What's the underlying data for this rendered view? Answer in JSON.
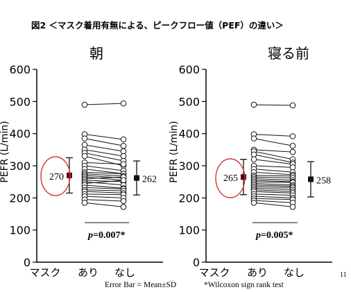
{
  "figure": {
    "title": "図2 ＜マスク着用有無による、ピークフロー値（PEF）の違い＞",
    "page_number": "11",
    "footnote_left": "Error Bar = Mean±SD",
    "footnote_right": "*Wilcoxon sign rank test"
  },
  "chart_data": [
    {
      "type": "paired-scatter",
      "title": "朝",
      "ylabel": "PEFR (L/min)",
      "xlabel": "マスク",
      "categories": [
        "あり",
        "なし"
      ],
      "ylim": [
        0,
        600
      ],
      "yticks": [
        0,
        100,
        200,
        300,
        400,
        500,
        600
      ],
      "grid": false,
      "pairs": [
        [
          490,
          494
        ],
        [
          398,
          382
        ],
        [
          385,
          362
        ],
        [
          365,
          345
        ],
        [
          350,
          330
        ],
        [
          340,
          315
        ],
        [
          330,
          300
        ],
        [
          310,
          305
        ],
        [
          300,
          285
        ],
        [
          290,
          275
        ],
        [
          280,
          275
        ],
        [
          275,
          268
        ],
        [
          270,
          262
        ],
        [
          265,
          255
        ],
        [
          260,
          265
        ],
        [
          255,
          250
        ],
        [
          250,
          240
        ],
        [
          245,
          255
        ],
        [
          240,
          230
        ],
        [
          232,
          228
        ],
        [
          225,
          222
        ],
        [
          220,
          215
        ],
        [
          212,
          210
        ],
        [
          205,
          200
        ],
        [
          195,
          190
        ],
        [
          185,
          172
        ]
      ],
      "mean_sd": [
        {
          "label": "270",
          "mean": 270,
          "sd": 55
        },
        {
          "label": "262",
          "mean": 262,
          "sd": 53
        }
      ],
      "p_prefix": "p",
      "p_value": "=0.007*",
      "highlight": "circled-mean-left"
    },
    {
      "type": "paired-scatter",
      "title": "寝る前",
      "ylabel": "PEFR (L/min)",
      "xlabel": "マスク",
      "categories": [
        "あり",
        "なし"
      ],
      "ylim": [
        0,
        600
      ],
      "yticks": [
        0,
        100,
        200,
        300,
        400,
        500,
        600
      ],
      "grid": false,
      "pairs": [
        [
          490,
          488
        ],
        [
          398,
          392
        ],
        [
          385,
          362
        ],
        [
          350,
          343
        ],
        [
          345,
          320
        ],
        [
          335,
          310
        ],
        [
          320,
          305
        ],
        [
          300,
          295
        ],
        [
          290,
          280
        ],
        [
          280,
          272
        ],
        [
          270,
          268
        ],
        [
          265,
          262
        ],
        [
          260,
          255
        ],
        [
          255,
          250
        ],
        [
          250,
          248
        ],
        [
          245,
          240
        ],
        [
          240,
          236
        ],
        [
          235,
          232
        ],
        [
          230,
          226
        ],
        [
          225,
          220
        ],
        [
          220,
          215
        ],
        [
          212,
          208
        ],
        [
          205,
          200
        ],
        [
          198,
          195
        ],
        [
          192,
          185
        ],
        [
          185,
          172
        ]
      ],
      "mean_sd": [
        {
          "label": "265",
          "mean": 265,
          "sd": 55
        },
        {
          "label": "258",
          "mean": 258,
          "sd": 55
        }
      ],
      "p_prefix": "p",
      "p_value": "=0.005*",
      "highlight": "circled-mean-left"
    }
  ]
}
